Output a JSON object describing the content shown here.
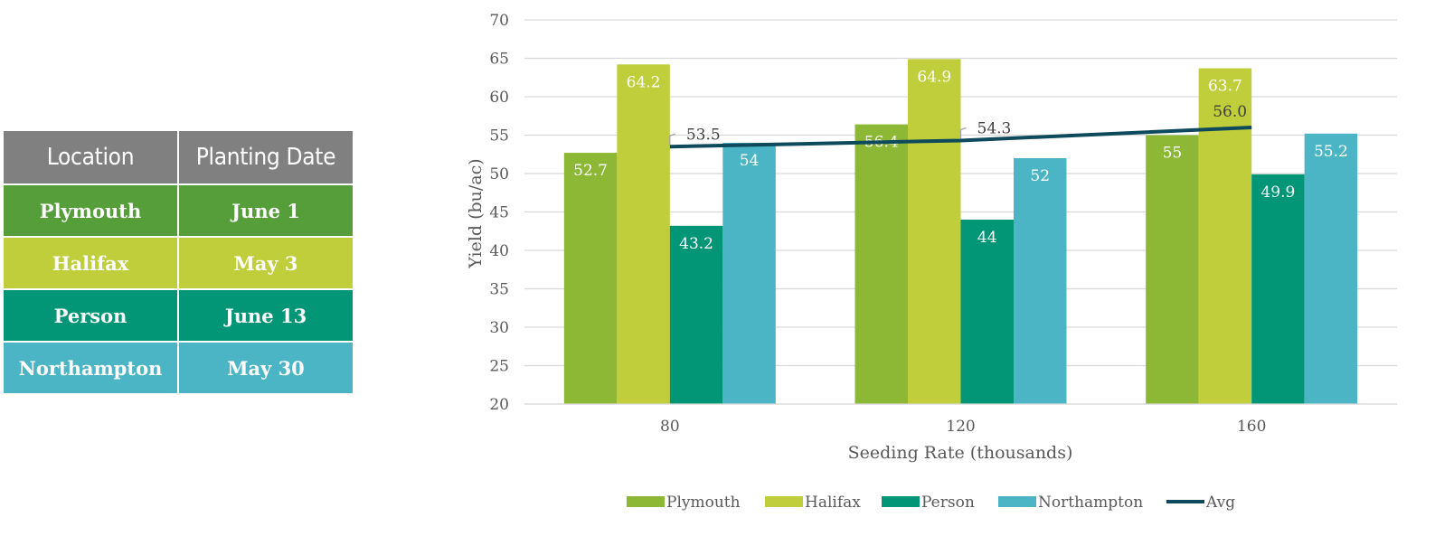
{
  "table": {
    "headers": [
      "Location",
      "Planting Date"
    ],
    "rows": [
      {
        "location": "Plymouth",
        "date": "June 1",
        "color": "#559E3A"
      },
      {
        "location": "Halifax",
        "date": "May 3",
        "color": "#BFCE3A"
      },
      {
        "location": "Person",
        "date": "June 13",
        "color": "#029676"
      },
      {
        "location": "Northampton",
        "date": "May 30",
        "color": "#4BB5C5"
      }
    ],
    "header_color": "#808080"
  },
  "chart_data": {
    "type": "bar",
    "title": "",
    "xlabel": "Seeding Rate (thousands)",
    "ylabel": "Yield (bu/ac)",
    "ylim": [
      20,
      70
    ],
    "yticks": [
      20,
      25,
      30,
      35,
      40,
      45,
      50,
      55,
      60,
      65,
      70
    ],
    "categories": [
      "80",
      "120",
      "160"
    ],
    "grid": true,
    "legend_position": "bottom",
    "series": [
      {
        "name": "Plymouth",
        "values": [
          52.7,
          56.4,
          55
        ],
        "labels": [
          "52.7",
          "56.4",
          "55"
        ],
        "color": "#8CB836"
      },
      {
        "name": "Halifax",
        "values": [
          64.2,
          64.9,
          63.7
        ],
        "labels": [
          "64.2",
          "64.9",
          "63.7"
        ],
        "color": "#BFCE3A"
      },
      {
        "name": "Person",
        "values": [
          43.2,
          44,
          49.9
        ],
        "labels": [
          "43.2",
          "44",
          "49.9"
        ],
        "color": "#029676"
      },
      {
        "name": "Northampton",
        "values": [
          54,
          52,
          55.2
        ],
        "labels": [
          "54",
          "52",
          "55.2"
        ],
        "color": "#4BB5C5"
      }
    ],
    "line_series": {
      "name": "Avg",
      "values": [
        53.5,
        54.3,
        56.0
      ],
      "labels": [
        "53.5",
        "54.3",
        "56.0"
      ],
      "color": "#0E4A5B"
    }
  }
}
